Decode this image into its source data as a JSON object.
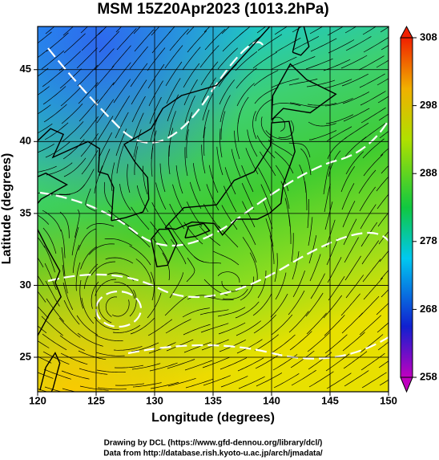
{
  "chart_data": {
    "type": "map",
    "title": "MSM 15Z20Apr2023 (1013.2hPa)",
    "x_label": "Longitude (degrees)",
    "y_label": "Latitude  (degrees)",
    "xlim": [
      120,
      150
    ],
    "ylim": [
      22.6,
      48
    ],
    "xticks": [
      120,
      125,
      130,
      135,
      140,
      145,
      150
    ],
    "yticks": [
      25,
      30,
      35,
      40,
      45
    ],
    "grid": true,
    "colorbar": {
      "lim": [
        258,
        308
      ],
      "ticks": [
        258,
        268,
        278,
        288,
        298,
        308
      ]
    }
  },
  "footer": {
    "line1": "Drawing by DCL (https://www.gfd-dennou.org/library/dcl/)",
    "line2": "Data from http://database.rish.kyoto-u.ac.jp/arch/jmadata/"
  }
}
